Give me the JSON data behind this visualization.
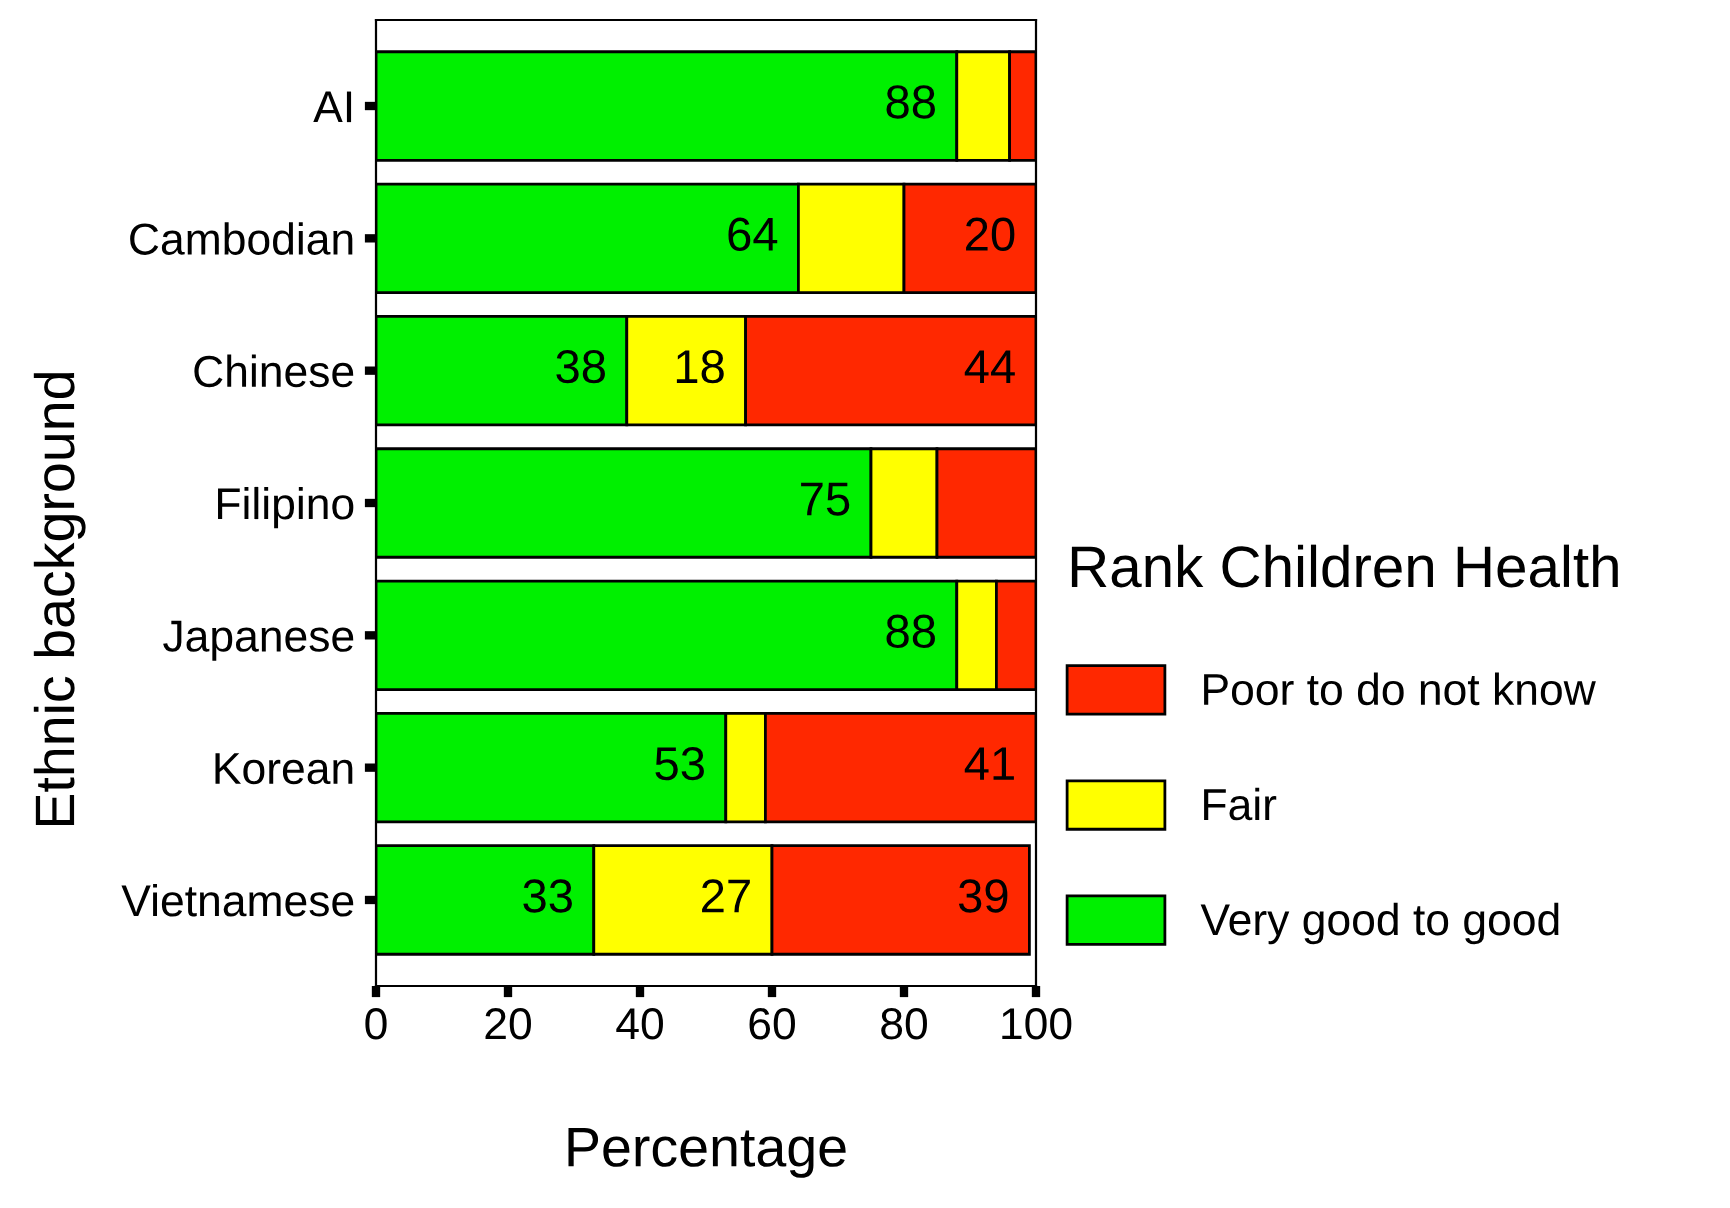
{
  "chart_data": {
    "type": "bar",
    "orientation": "horizontal",
    "stacked": true,
    "categories": [
      "AI",
      "Cambodian",
      "Chinese",
      "Filipino",
      "Japanese",
      "Korean",
      "Vietnamese"
    ],
    "series": [
      {
        "name": "Very good to good",
        "color": "#00f000",
        "values": [
          88,
          64,
          38,
          75,
          88,
          53,
          33
        ],
        "value_labels": [
          "88",
          "64",
          "38",
          "75",
          "88",
          "53",
          "33"
        ]
      },
      {
        "name": "Fair",
        "color": "#ffff00",
        "values": [
          8,
          16,
          18,
          10,
          6,
          6,
          27
        ],
        "value_labels": [
          null,
          null,
          "18",
          null,
          null,
          null,
          "27"
        ]
      },
      {
        "name": "Poor to do not know",
        "color": "#ff2800",
        "values": [
          4,
          20,
          44,
          15,
          6,
          41,
          39
        ],
        "value_labels": [
          null,
          "20",
          "44",
          null,
          null,
          "41",
          "39"
        ]
      }
    ],
    "xlabel": "Percentage",
    "ylabel": "Ethnic background",
    "legend_title": "Rank Children Health",
    "xlim": [
      0,
      100
    ],
    "xticks": [
      0,
      20,
      40,
      60,
      80,
      100
    ],
    "grid": false,
    "legend": "right"
  }
}
